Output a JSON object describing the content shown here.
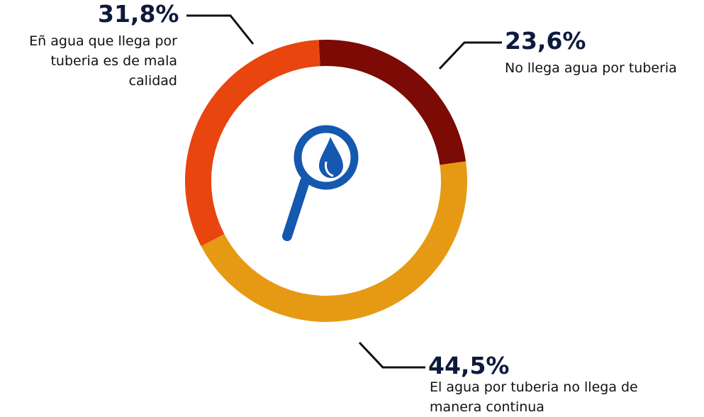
{
  "chart_data": {
    "type": "donut",
    "labels": [
      "No llega agua por tuberia",
      "El agua por tuberia no llega de manera continua",
      "Eñ agua que llega por tuberia es de mala calidad"
    ],
    "values": [
      23.6,
      44.5,
      31.8
    ],
    "value_labels": [
      "23,6%",
      "44,5%",
      "31,8%"
    ],
    "colors": [
      "#7c0a05",
      "#e69a14",
      "#e8450f"
    ]
  }
}
